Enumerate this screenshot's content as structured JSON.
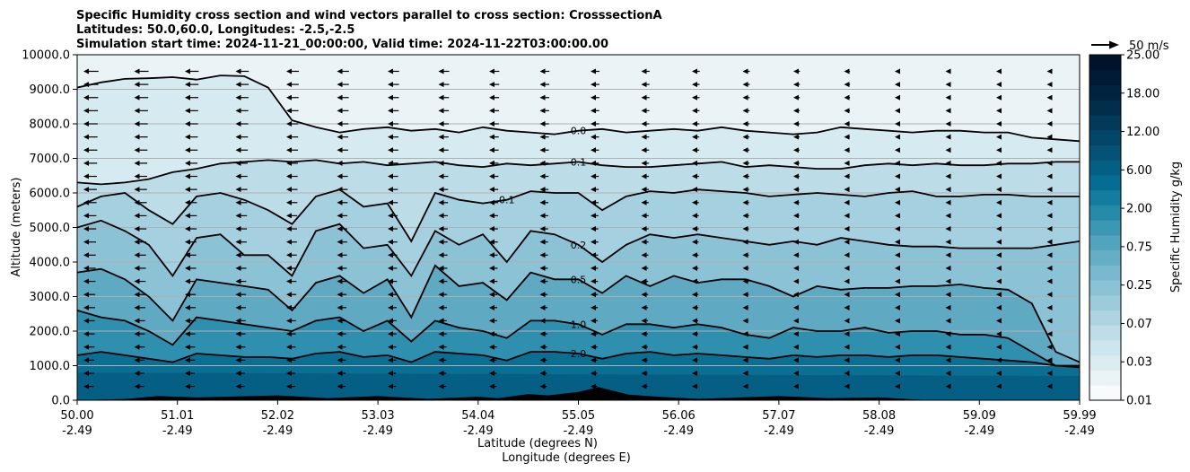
{
  "chart_data": {
    "type": "contourf",
    "title": [
      "Specific Humidity cross section and wind vectors parallel to cross section: CrosssectionA",
      "Latitudes: 50.0,60.0, Longitudes: -2.5,-2.5",
      "Simulation start time: 2024-11-21_00:00:00, Valid time: 2024-11-22T03:00:00.00"
    ],
    "xlabel_lat": "Latitude (degrees N)",
    "xlabel_lon": "Longitude (degrees E)",
    "ylabel": "Altitude (meters)",
    "ylim": [
      0,
      10000
    ],
    "x_ticks": [
      {
        "lat": "50.00",
        "lon": "-2.49"
      },
      {
        "lat": "51.01",
        "lon": "-2.49"
      },
      {
        "lat": "52.02",
        "lon": "-2.49"
      },
      {
        "lat": "53.03",
        "lon": "-2.49"
      },
      {
        "lat": "54.04",
        "lon": "-2.49"
      },
      {
        "lat": "55.05",
        "lon": "-2.49"
      },
      {
        "lat": "56.06",
        "lon": "-2.49"
      },
      {
        "lat": "57.07",
        "lon": "-2.49"
      },
      {
        "lat": "58.08",
        "lon": "-2.49"
      },
      {
        "lat": "59.09",
        "lon": "-2.49"
      },
      {
        "lat": "59.99",
        "lon": "-2.49"
      }
    ],
    "y_ticks": [
      "0.0",
      "1000.0",
      "2000.0",
      "3000.0",
      "4000.0",
      "5000.0",
      "6000.0",
      "7000.0",
      "8000.0",
      "9000.0",
      "10000.0"
    ],
    "grid_horizontal": true,
    "colorbar": {
      "label": "Specific Humidity g/kg",
      "tick_labels": [
        "0.01",
        "0.03",
        "0.07",
        "0.25",
        "0.75",
        "2.00",
        "6.00",
        "12.00",
        "18.00",
        "25.00"
      ],
      "colors": [
        "#f7fbfc",
        "#eaf4f7",
        "#dcedf2",
        "#cde5ee",
        "#bedde8",
        "#aed4e3",
        "#9ecbdc",
        "#8cc2d6",
        "#79b8ce",
        "#65aec6",
        "#51a3be",
        "#3b97b4",
        "#268aa9",
        "#147c9e",
        "#066d92",
        "#055f85",
        "#055276",
        "#044667",
        "#033a59",
        "#022e4c",
        "#01233f",
        "#011a35",
        "#01122b"
      ]
    },
    "vector_key": {
      "label": "50 m/s",
      "value": 50
    },
    "contour_levels": [
      {
        "value": 0.0,
        "label": "0.0",
        "height_m": [
          9050,
          9200,
          9300,
          9320,
          9350,
          9280,
          9400,
          9380,
          9050,
          8100,
          7900,
          7750,
          7850,
          7900,
          7800,
          7850,
          7750,
          7900,
          7800,
          7750,
          7700,
          7800,
          7850,
          7750,
          7800,
          7850,
          7800,
          7900,
          7800,
          7750,
          7700,
          7750,
          7900,
          7850,
          7800,
          7750,
          7800,
          7800,
          7750,
          7750,
          7600,
          7550,
          7500
        ]
      },
      {
        "value": 0.1,
        "label": "0.1",
        "height_m": [
          6300,
          6250,
          6300,
          6400,
          6600,
          6700,
          6850,
          6900,
          6950,
          6900,
          6950,
          6850,
          6900,
          6800,
          6850,
          6900,
          6800,
          6750,
          6850,
          6800,
          6850,
          6900,
          6800,
          6750,
          6750,
          6800,
          6850,
          6900,
          6750,
          6800,
          6750,
          6700,
          6700,
          6800,
          6850,
          6800,
          6850,
          6800,
          6800,
          6850,
          6850,
          6900,
          6900
        ]
      },
      {
        "value": 0.1,
        "label": "0.1",
        "height_m": [
          5600,
          5900,
          6000,
          5500,
          5100,
          5900,
          6000,
          5800,
          5500,
          5100,
          5900,
          6100,
          5600,
          5700,
          4600,
          6000,
          5800,
          5700,
          5800,
          6050,
          6000,
          6000,
          5500,
          5900,
          6050,
          6000,
          6100,
          6050,
          6000,
          5900,
          5950,
          6000,
          5950,
          5900,
          6000,
          6050,
          5900,
          5900,
          5950,
          5950,
          5900,
          5900,
          5900
        ]
      },
      {
        "value": 0.2,
        "label": "0.2",
        "height_m": [
          5000,
          5200,
          4900,
          4500,
          3600,
          4700,
          4800,
          4200,
          4200,
          3600,
          4900,
          5100,
          4400,
          4500,
          3600,
          4900,
          4500,
          4800,
          4000,
          4900,
          4800,
          4500,
          4000,
          4500,
          4800,
          4700,
          4800,
          4700,
          4600,
          4500,
          4600,
          4500,
          4700,
          4600,
          4500,
          4450,
          4450,
          4400,
          4400,
          4400,
          4400,
          4500,
          4600
        ]
      },
      {
        "value": 0.5,
        "label": "0.5",
        "height_m": [
          3700,
          3800,
          3500,
          3000,
          2300,
          3500,
          3400,
          3300,
          3200,
          2600,
          3400,
          3600,
          3100,
          3500,
          2400,
          3900,
          3300,
          3400,
          2900,
          3700,
          3500,
          3500,
          3100,
          3600,
          3300,
          3600,
          3400,
          3500,
          3500,
          3300,
          3000,
          3300,
          3200,
          3250,
          3250,
          3300,
          3300,
          3350,
          3250,
          3200,
          2800,
          1400,
          1100
        ]
      },
      {
        "value": 1.0,
        "label": "1.0",
        "height_m": [
          2600,
          2400,
          2300,
          2000,
          1600,
          2400,
          2300,
          2200,
          2100,
          2000,
          2300,
          2400,
          2000,
          2300,
          1700,
          2300,
          2100,
          2000,
          1800,
          2300,
          2300,
          2200,
          1900,
          2200,
          2200,
          2100,
          2200,
          2100,
          1900,
          1800,
          2100,
          2000,
          2000,
          2100,
          1950,
          2000,
          2000,
          1900,
          1900,
          1800,
          1400,
          1000,
          1000
        ]
      },
      {
        "value": 2.0,
        "label": "2.0",
        "height_m": [
          1300,
          1400,
          1300,
          1200,
          1100,
          1350,
          1300,
          1250,
          1250,
          1200,
          1350,
          1400,
          1250,
          1300,
          1100,
          1400,
          1350,
          1300,
          1150,
          1400,
          1400,
          1350,
          1200,
          1350,
          1400,
          1300,
          1350,
          1300,
          1250,
          1200,
          1300,
          1250,
          1300,
          1300,
          1250,
          1300,
          1300,
          1250,
          1200,
          1150,
          1100,
          1000,
          950
        ]
      }
    ]
  }
}
